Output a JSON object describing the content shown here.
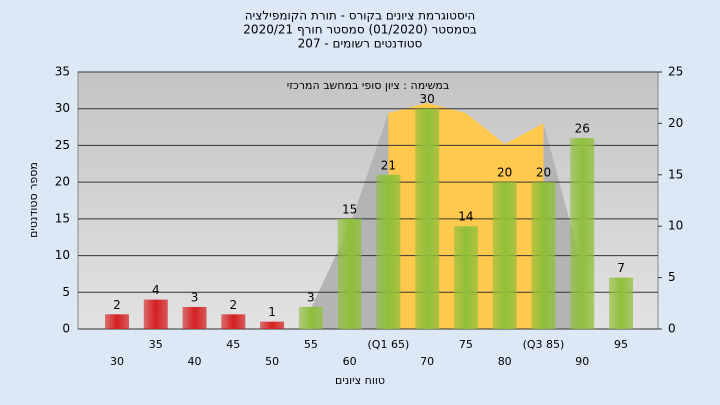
{
  "chart_data": {
    "type": "bar",
    "title": [
      "היסטוגרמת ציונים בקורס - תורת הקומפילציה",
      "בסמסטר  (01/2020)  סמסטר חורף 2020/21",
      "סטודנטים רשומים - 207"
    ],
    "subtitle": "במשימה : ציון סופי במחשב המרכזי",
    "y_label": "מספר סטודנטים",
    "x_label": "טווח ציונים",
    "categories": [
      "30",
      "35",
      "40",
      "45",
      "50",
      "55",
      "60",
      "(Q1 65)",
      "70",
      "75",
      "80",
      "(Q3 85)",
      "90",
      "95"
    ],
    "values": [
      2,
      4,
      3,
      2,
      1,
      3,
      15,
      21,
      30,
      14,
      20,
      20,
      26,
      7
    ],
    "colors": [
      "#d42020",
      "#d42020",
      "#d42020",
      "#d42020",
      "#d42020",
      "#8fbf3a",
      "#8fbf3a",
      "#8fbf3a",
      "#8fbf3a",
      "#8fbf3a",
      "#8fbf3a",
      "#8fbf3a",
      "#8fbf3a",
      "#8fbf3a"
    ],
    "areas": [
      {
        "axis": "y2",
        "color": "#b4b4b4",
        "values": [
          null,
          null,
          null,
          null,
          null,
          2,
          10,
          21,
          null,
          null,
          null,
          20,
          6,
          null
        ]
      },
      {
        "axis": "y2",
        "color": "#ffc94d",
        "values": [
          null,
          null,
          null,
          null,
          null,
          null,
          null,
          21,
          22,
          21,
          18,
          20,
          null,
          null
        ]
      }
    ],
    "ylim": [
      0,
      35
    ],
    "yticks": [
      0,
      5,
      10,
      15,
      20,
      25,
      30,
      35
    ],
    "y2lim": [
      0,
      25
    ],
    "y2ticks": [
      0,
      5,
      10,
      15,
      20,
      25
    ],
    "grid": true
  }
}
